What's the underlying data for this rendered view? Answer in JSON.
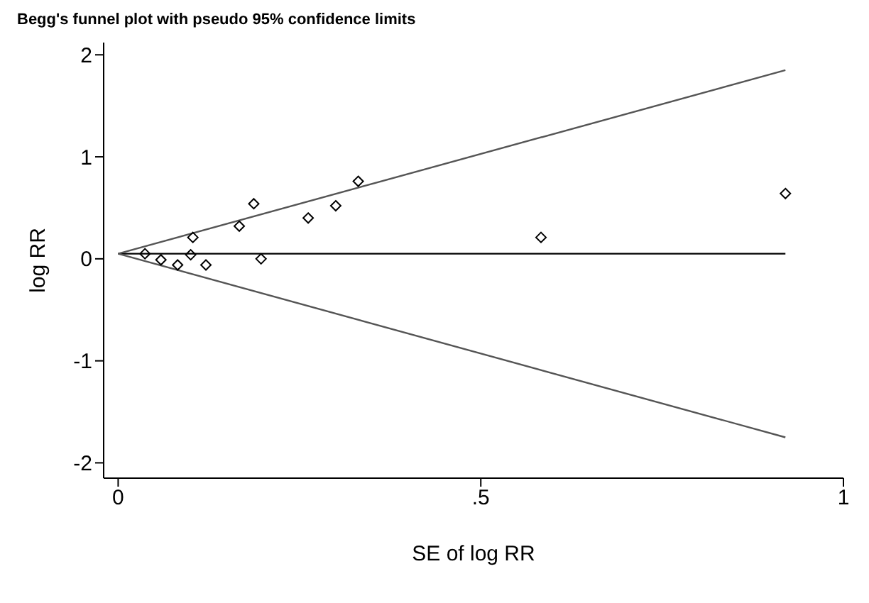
{
  "chart_data": {
    "type": "scatter",
    "title": "Begg's funnel plot with pseudo 95% confidence limits",
    "xlabel": "SE of log RR",
    "ylabel": "log RR",
    "xlim": [
      -0.02,
      1
    ],
    "ylim": [
      -2.15,
      2.12
    ],
    "xticks": [
      0,
      {
        "value": 0.5,
        "label": ".5"
      },
      1
    ],
    "yticks": [
      -2,
      -1,
      0,
      1,
      2
    ],
    "grid": false,
    "legend": false,
    "series": [
      {
        "marker": "diamond",
        "color": "#000000",
        "x": [
          0.037,
          0.059,
          0.082,
          0.1,
          0.103,
          0.121,
          0.167,
          0.187,
          0.197,
          0.262,
          0.3,
          0.331,
          0.583,
          0.92
        ],
        "values": [
          0.05,
          -0.01,
          -0.06,
          0.04,
          0.21,
          -0.06,
          0.32,
          0.54,
          0.0,
          0.4,
          0.52,
          0.76,
          0.21,
          0.64
        ]
      },
      {
        "type": "line",
        "color": "#000000",
        "x": [
          0,
          0.92
        ],
        "values": [
          0.05,
          0.05
        ],
        "line_style": "solid"
      },
      {
        "type": "line",
        "color": "#555555",
        "x": [
          0,
          0.92
        ],
        "values": [
          0.05,
          1.85
        ],
        "line_style": "solid"
      },
      {
        "type": "line",
        "color": "#555555",
        "x": [
          0,
          0.92
        ],
        "values": [
          0.05,
          -1.75
        ],
        "line_style": "solid"
      }
    ]
  }
}
